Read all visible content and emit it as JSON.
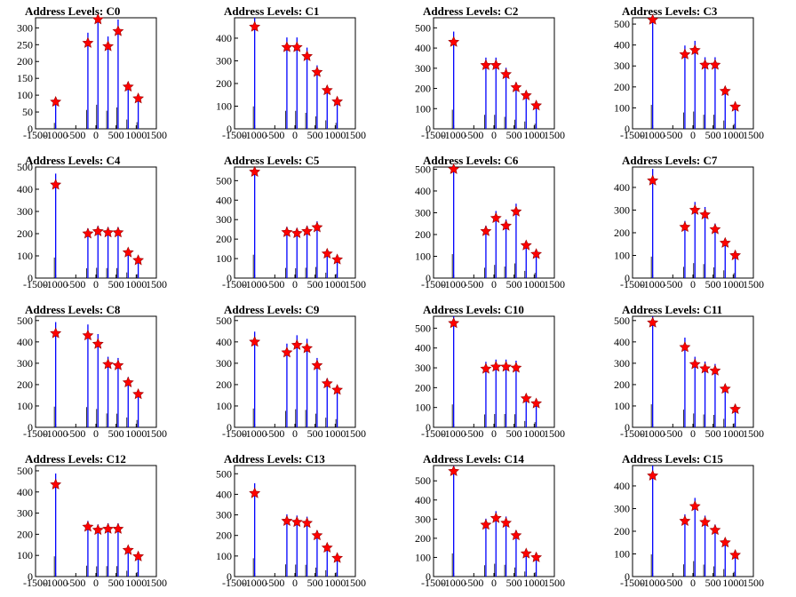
{
  "chart_data": [
    {
      "type": "bar",
      "title": "Address Levels: C0",
      "x": [
        -1000,
        -200,
        50,
        300,
        550,
        800,
        1050
      ],
      "values": [
        80,
        255,
        325,
        245,
        290,
        125,
        90
      ],
      "ylim": [
        0,
        330
      ],
      "yticks": [
        0,
        50,
        100,
        150,
        200,
        250,
        300
      ],
      "xlim": [
        -1500,
        1500
      ],
      "xticks": [
        -1500,
        -1000,
        -500,
        0,
        500,
        1000,
        1500
      ],
      "xtick_labels": [
        "-1500",
        "-1000",
        "-500",
        "0",
        "500",
        "1000",
        "1500"
      ]
    },
    {
      "type": "bar",
      "title": "Address Levels: C1",
      "x": [
        -1000,
        -200,
        50,
        300,
        550,
        800,
        1050
      ],
      "values": [
        450,
        360,
        360,
        320,
        250,
        170,
        120
      ],
      "ylim": [
        0,
        490
      ],
      "yticks": [
        0,
        100,
        200,
        300,
        400
      ],
      "xlim": [
        -1500,
        1500
      ],
      "xticks": [
        -1500,
        -1000,
        -500,
        0,
        500,
        1000,
        1500
      ],
      "xtick_labels": [
        "-1500",
        "-1000",
        "-500",
        "0",
        "500",
        "1000",
        "1500"
      ]
    },
    {
      "type": "bar",
      "title": "Address Levels: C2",
      "x": [
        -1000,
        -200,
        50,
        300,
        550,
        800,
        1050
      ],
      "values": [
        430,
        315,
        315,
        270,
        205,
        165,
        115
      ],
      "ylim": [
        0,
        550
      ],
      "yticks": [
        0,
        100,
        200,
        300,
        400,
        500
      ],
      "xlim": [
        -1500,
        1500
      ],
      "xticks": [
        -1500,
        -1000,
        -500,
        0,
        500,
        1000,
        1500
      ],
      "xtick_labels": [
        "-1500",
        "-1000",
        "-500",
        "0",
        "500",
        "1000",
        "1500"
      ]
    },
    {
      "type": "bar",
      "title": "Address Levels: C3",
      "x": [
        -1000,
        -200,
        50,
        300,
        550,
        800,
        1050
      ],
      "values": [
        520,
        355,
        375,
        305,
        305,
        180,
        105
      ],
      "ylim": [
        0,
        530
      ],
      "yticks": [
        0,
        100,
        200,
        300,
        400,
        500
      ],
      "xlim": [
        -1500,
        1500
      ],
      "xticks": [
        -1500,
        -1000,
        -500,
        0,
        500,
        1000,
        1500
      ],
      "xtick_labels": [
        "-1500",
        "-1000",
        "-500",
        "0",
        "500",
        "1000",
        "1500"
      ]
    },
    {
      "type": "bar",
      "title": "Address Levels: C4",
      "x": [
        -1000,
        -200,
        50,
        300,
        550,
        800,
        1050
      ],
      "values": [
        420,
        200,
        210,
        205,
        205,
        115,
        80
      ],
      "ylim": [
        0,
        500
      ],
      "yticks": [
        0,
        100,
        200,
        300,
        400,
        500
      ],
      "xlim": [
        -1500,
        1500
      ],
      "xticks": [
        -1500,
        -1000,
        -500,
        0,
        500,
        1000,
        1500
      ],
      "xtick_labels": [
        "-1500",
        "-1000",
        "-500",
        "0",
        "500",
        "1000",
        "1500"
      ]
    },
    {
      "type": "bar",
      "title": "Address Levels: C5",
      "x": [
        -1000,
        -200,
        50,
        300,
        550,
        800,
        1050
      ],
      "values": [
        545,
        235,
        230,
        240,
        260,
        125,
        95
      ],
      "ylim": [
        0,
        570
      ],
      "yticks": [
        0,
        100,
        200,
        300,
        400,
        500
      ],
      "xlim": [
        -1500,
        1500
      ],
      "xticks": [
        -1500,
        -1000,
        -500,
        0,
        500,
        1000,
        1500
      ],
      "xtick_labels": [
        "-1500",
        "-1000",
        "-500",
        "0",
        "500",
        "1000",
        "1500"
      ]
    },
    {
      "type": "bar",
      "title": "Address Levels: C6",
      "x": [
        -1000,
        -200,
        50,
        300,
        550,
        800,
        1050
      ],
      "values": [
        500,
        215,
        275,
        240,
        305,
        150,
        110
      ],
      "ylim": [
        0,
        510
      ],
      "yticks": [
        0,
        100,
        200,
        300,
        400,
        500
      ],
      "xlim": [
        -1500,
        1500
      ],
      "xticks": [
        -1500,
        -1000,
        -500,
        0,
        500,
        1000,
        1500
      ],
      "xtick_labels": [
        "-1500",
        "-1000",
        "-500",
        "0",
        "500",
        "1000",
        "1500"
      ]
    },
    {
      "type": "bar",
      "title": "Address Levels: C7",
      "x": [
        -1000,
        -200,
        50,
        300,
        550,
        800,
        1050
      ],
      "values": [
        430,
        225,
        300,
        280,
        215,
        155,
        100
      ],
      "ylim": [
        0,
        490
      ],
      "yticks": [
        0,
        100,
        200,
        300,
        400
      ],
      "xlim": [
        -1500,
        1500
      ],
      "xticks": [
        -1500,
        -1000,
        -500,
        0,
        500,
        1000,
        1500
      ],
      "xtick_labels": [
        "-1500",
        "-1000",
        "-500",
        "0",
        "500",
        "1000",
        "1500"
      ]
    },
    {
      "type": "bar",
      "title": "Address Levels: C8",
      "x": [
        -1000,
        -200,
        50,
        300,
        550,
        800,
        1050
      ],
      "values": [
        440,
        430,
        390,
        295,
        290,
        210,
        155
      ],
      "ylim": [
        0,
        520
      ],
      "yticks": [
        0,
        100,
        200,
        300,
        400,
        500
      ],
      "xlim": [
        -1500,
        1500
      ],
      "xticks": [
        -1500,
        -1000,
        -500,
        0,
        500,
        1000,
        1500
      ],
      "xtick_labels": [
        "-1500",
        "-1000",
        "-500",
        "0",
        "500",
        "1000",
        "1500"
      ]
    },
    {
      "type": "bar",
      "title": "Address Levels: C9",
      "x": [
        -1000,
        -200,
        50,
        300,
        550,
        800,
        1050
      ],
      "values": [
        400,
        350,
        385,
        370,
        290,
        205,
        175
      ],
      "ylim": [
        0,
        520
      ],
      "yticks": [
        0,
        100,
        200,
        300,
        400,
        500
      ],
      "xlim": [
        -1500,
        1500
      ],
      "xticks": [
        -1500,
        -1000,
        -500,
        0,
        500,
        1000,
        1500
      ],
      "xtick_labels": [
        "-1500",
        "-1000",
        "-500",
        "0",
        "500",
        "1000",
        "1500"
      ]
    },
    {
      "type": "bar",
      "title": "Address Levels: C10",
      "x": [
        -1000,
        -200,
        50,
        300,
        550,
        800,
        1050
      ],
      "values": [
        525,
        295,
        305,
        305,
        300,
        145,
        120
      ],
      "ylim": [
        0,
        560
      ],
      "yticks": [
        0,
        100,
        200,
        300,
        400,
        500
      ],
      "xlim": [
        -1500,
        1500
      ],
      "xticks": [
        -1500,
        -1000,
        -500,
        0,
        500,
        1000,
        1500
      ],
      "xtick_labels": [
        "-1500",
        "-1000",
        "-500",
        "0",
        "500",
        "1000",
        "1500"
      ]
    },
    {
      "type": "bar",
      "title": "Address Levels: C11",
      "x": [
        -1000,
        -200,
        50,
        300,
        550,
        800,
        1050
      ],
      "values": [
        490,
        375,
        295,
        275,
        265,
        180,
        85
      ],
      "ylim": [
        0,
        520
      ],
      "yticks": [
        0,
        100,
        200,
        300,
        400,
        500
      ],
      "xlim": [
        -1500,
        1500
      ],
      "xticks": [
        -1500,
        -1000,
        -500,
        0,
        500,
        1000,
        1500
      ],
      "xtick_labels": [
        "-1500",
        "-1000",
        "-500",
        "0",
        "500",
        "1000",
        "1500"
      ]
    },
    {
      "type": "bar",
      "title": "Address Levels: C12",
      "x": [
        -1000,
        -200,
        50,
        300,
        550,
        800,
        1050
      ],
      "values": [
        435,
        235,
        220,
        225,
        225,
        125,
        95
      ],
      "ylim": [
        0,
        525
      ],
      "yticks": [
        0,
        100,
        200,
        300,
        400,
        500
      ],
      "xlim": [
        -1500,
        1500
      ],
      "xticks": [
        -1500,
        -1000,
        -500,
        0,
        500,
        1000,
        1500
      ],
      "xtick_labels": [
        "-1500",
        "-1000",
        "-500",
        "0",
        "500",
        "1000",
        "1500"
      ]
    },
    {
      "type": "bar",
      "title": "Address Levels: C13",
      "x": [
        -1000,
        -200,
        50,
        300,
        550,
        800,
        1050
      ],
      "values": [
        405,
        270,
        265,
        260,
        200,
        140,
        90
      ],
      "ylim": [
        0,
        540
      ],
      "yticks": [
        0,
        100,
        200,
        300,
        400,
        500
      ],
      "xlim": [
        -1500,
        1500
      ],
      "xticks": [
        -1500,
        -1000,
        -500,
        0,
        500,
        1000,
        1500
      ],
      "xtick_labels": [
        "-1500",
        "-1000",
        "-500",
        "0",
        "500",
        "1000",
        "1500"
      ]
    },
    {
      "type": "bar",
      "title": "Address Levels: C14",
      "x": [
        -1000,
        -200,
        50,
        300,
        550,
        800,
        1050
      ],
      "values": [
        550,
        270,
        305,
        280,
        215,
        120,
        100
      ],
      "ylim": [
        0,
        580
      ],
      "yticks": [
        0,
        100,
        200,
        300,
        400,
        500
      ],
      "xlim": [
        -1500,
        1500
      ],
      "xticks": [
        -1500,
        -1000,
        -500,
        0,
        500,
        1000,
        1500
      ],
      "xtick_labels": [
        "-1500",
        "-1000",
        "-500",
        "0",
        "500",
        "1000",
        "1500"
      ]
    },
    {
      "type": "bar",
      "title": "Address Levels: C15",
      "x": [
        -1000,
        -200,
        50,
        300,
        550,
        800,
        1050
      ],
      "values": [
        445,
        245,
        310,
        240,
        205,
        150,
        95
      ],
      "ylim": [
        0,
        490
      ],
      "yticks": [
        0,
        100,
        200,
        300,
        400
      ],
      "xlim": [
        -1500,
        1500
      ],
      "xticks": [
        -1500,
        -1000,
        -500,
        0,
        500,
        1000,
        1500
      ],
      "xtick_labels": [
        "-1500",
        "-1000",
        "-500",
        "0",
        "500",
        "1000",
        "1500"
      ]
    }
  ],
  "colors": {
    "bar": "#0000ff",
    "tail": "#000000",
    "star_fill": "#ff0000",
    "star_stroke": "#990000"
  }
}
